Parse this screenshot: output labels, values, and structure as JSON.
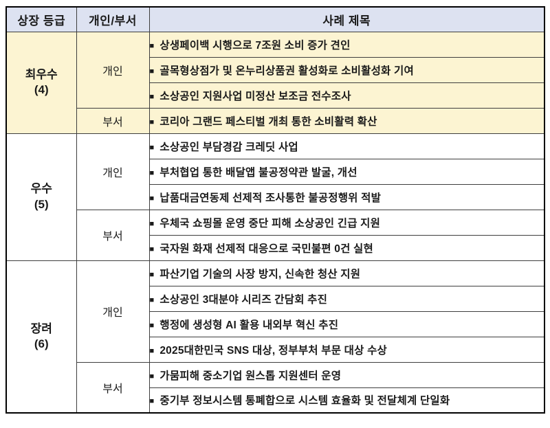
{
  "colors": {
    "header_bg": "#dde2f1",
    "highlight_bg": "#fcf4d2",
    "border": "#3d3d3d",
    "outer_border": "#000000",
    "text": "#1a1a1a"
  },
  "table": {
    "bullet": "■",
    "headers": [
      "상장 등급",
      "개인/부서",
      "사례 제목"
    ],
    "groups": [
      {
        "grade": "최우수",
        "count": "(4)",
        "subgroups": [
          {
            "type": "개인",
            "cases": [
              "상생페이백 시행으로 7조원 소비 증가 견인",
              "골목형상점가 및 온누리상품권 활성화로 소비활성화 기여",
              "소상공인 지원사업 미정산 보조금 전수조사"
            ]
          },
          {
            "type": "부서",
            "cases": [
              "코리아 그랜드 페스티벌 개최 통한 소비활력 확산"
            ]
          }
        ]
      },
      {
        "grade": "우수",
        "count": "(5)",
        "subgroups": [
          {
            "type": "개인",
            "cases": [
              "소상공인 부담경감 크레딧 사업",
              "부처협업 통한 배달앱 불공정약관 발굴, 개선",
              "납품대금연동제 선제적 조사통한 불공정행위 적발"
            ]
          },
          {
            "type": "부서",
            "cases": [
              "우체국 쇼핑몰 운영 중단 피해 소상공인 긴급 지원",
              "국자원 화재 선제적 대응으로 국민불편 0건 실현"
            ]
          }
        ]
      },
      {
        "grade": "장려",
        "count": "(6)",
        "subgroups": [
          {
            "type": "개인",
            "cases": [
              "파산기업 기술의 사장 방지, 신속한 청산 지원",
              "소상공인 3대분야 시리즈 간담회 추진",
              "행정에 생성형 AI 활용 내외부 혁신 추진",
              "2025대한민국 SNS 대상, 정부부처 부문 대상 수상"
            ]
          },
          {
            "type": "부서",
            "cases": [
              "가뭄피해 중소기업 원스톱 지원센터 운영",
              "중기부 정보시스템 통폐합으로 시스템 효율화 및 전달체계 단일화"
            ]
          }
        ]
      }
    ]
  }
}
